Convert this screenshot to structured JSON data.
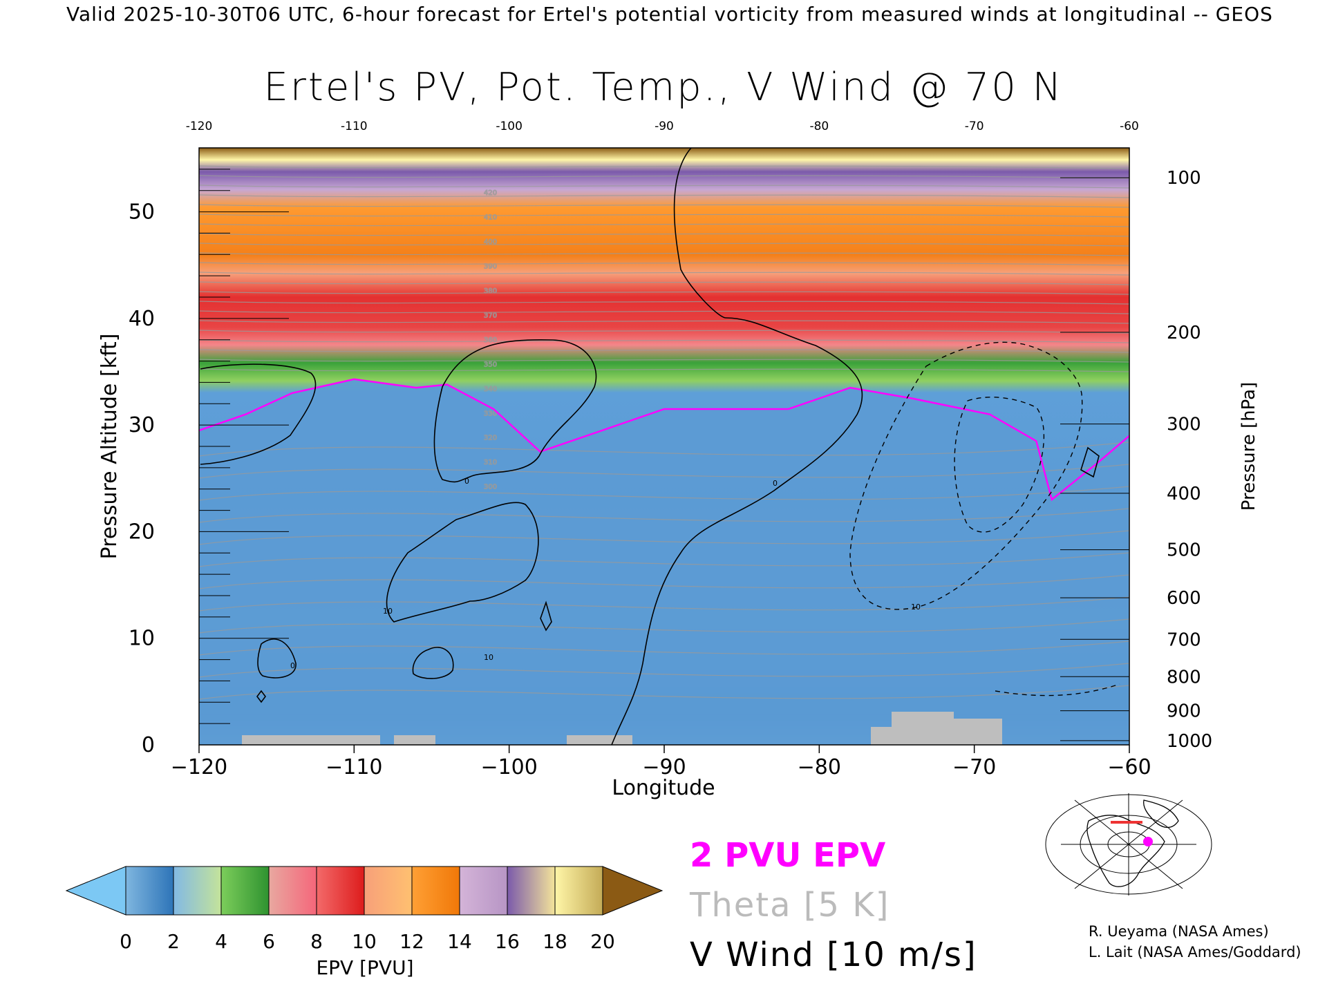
{
  "page": {
    "top_caption": "Valid 2025-10-30T06 UTC, 6-hour forecast for Ertel's potential vorticity from measured winds at longitudinal -- GEOS",
    "credits": [
      "R. Ueyama (NASA Ames)",
      "L. Lait (NASA Ames/Goddard)"
    ],
    "legend": {
      "epv_label": "2 PVU EPV",
      "theta_label": "Theta [5 K]",
      "vwind_label": "V Wind [10 m/s]",
      "colors": {
        "epv": "#ff00ff",
        "theta": "#bbbbbb",
        "vwind": "#000000"
      }
    },
    "icons": [
      "locator-map-icon"
    ]
  },
  "chart_data": {
    "type": "heatmap",
    "title": "Ertel's PV, Pot. Temp., V Wind @ 70 N",
    "xlabel": "Longitude",
    "ylabel": "Pressure Altitude [kft]",
    "y2label": "Pressure [hPa]",
    "xlim": [
      -120,
      -60
    ],
    "ylim": [
      0,
      56
    ],
    "x_ticks": [
      -120,
      -110,
      -100,
      -90,
      -80,
      -70,
      -60
    ],
    "x_top_ticks": [
      -120,
      -110,
      -100,
      -90,
      -80,
      -70,
      -60
    ],
    "y_ticks": [
      0,
      10,
      20,
      30,
      40,
      50
    ],
    "pressure_ticks": [
      {
        "hpa": 100,
        "kft": 53.2
      },
      {
        "hpa": 200,
        "kft": 38.7
      },
      {
        "hpa": 300,
        "kft": 30.1
      },
      {
        "hpa": 400,
        "kft": 23.6
      },
      {
        "hpa": 500,
        "kft": 18.3
      },
      {
        "hpa": 600,
        "kft": 13.8
      },
      {
        "hpa": 700,
        "kft": 9.9
      },
      {
        "hpa": 800,
        "kft": 6.4
      },
      {
        "hpa": 900,
        "kft": 3.2
      },
      {
        "hpa": 1000,
        "kft": 0.4
      }
    ],
    "colorbar": {
      "label": "EPV [PVU]",
      "ticks": [
        0,
        2,
        4,
        6,
        8,
        10,
        12,
        14,
        16,
        18,
        20
      ],
      "under_color": "#7cc8f4",
      "over_color": "#8b5a14",
      "segments": [
        {
          "from": 0,
          "to": 2,
          "colors": [
            "#7fb6df",
            "#2d74b8"
          ]
        },
        {
          "from": 2,
          "to": 4,
          "colors": [
            "#82b9e4",
            "#c4e39a"
          ]
        },
        {
          "from": 4,
          "to": 6,
          "colors": [
            "#7ccd5b",
            "#2f9330"
          ]
        },
        {
          "from": 6,
          "to": 8,
          "colors": [
            "#e8a8a0",
            "#f5667a"
          ]
        },
        {
          "from": 8,
          "to": 10,
          "colors": [
            "#f36a6a",
            "#dd1c1c"
          ]
        },
        {
          "from": 10,
          "to": 12,
          "colors": [
            "#f7a07a",
            "#ffc070"
          ]
        },
        {
          "from": 12,
          "to": 14,
          "colors": [
            "#ffa035",
            "#f07808"
          ]
        },
        {
          "from": 14,
          "to": 16,
          "colors": [
            "#d4b4d8",
            "#b795c5"
          ]
        },
        {
          "from": 16,
          "to": 18,
          "colors": [
            "#7b5aab",
            "#f4e49a"
          ]
        },
        {
          "from": 18,
          "to": 20,
          "colors": [
            "#fff6a8",
            "#c4ab57"
          ]
        }
      ]
    },
    "tropopause_2pvu_kft": [
      [
        -120,
        29.5
      ],
      [
        -117,
        31.0
      ],
      [
        -114,
        33.0
      ],
      [
        -110,
        34.3
      ],
      [
        -106,
        33.5
      ],
      [
        -104,
        33.8
      ],
      [
        -101,
        31.5
      ],
      [
        -98,
        27.5
      ],
      [
        -94,
        29.5
      ],
      [
        -90,
        31.5
      ],
      [
        -86,
        31.5
      ],
      [
        -82,
        31.5
      ],
      [
        -78,
        33.5
      ],
      [
        -74,
        32.5
      ],
      [
        -69,
        31.0
      ],
      [
        -66,
        28.5
      ],
      [
        -65,
        23.0
      ],
      [
        -62,
        26.5
      ],
      [
        -60,
        29.0
      ]
    ],
    "theta_labels_K": [
      300,
      310,
      320,
      330,
      340,
      350,
      360,
      370,
      380,
      390,
      400,
      410,
      420
    ],
    "vwind_contour_labels": [
      "0",
      "10",
      "-10"
    ]
  }
}
